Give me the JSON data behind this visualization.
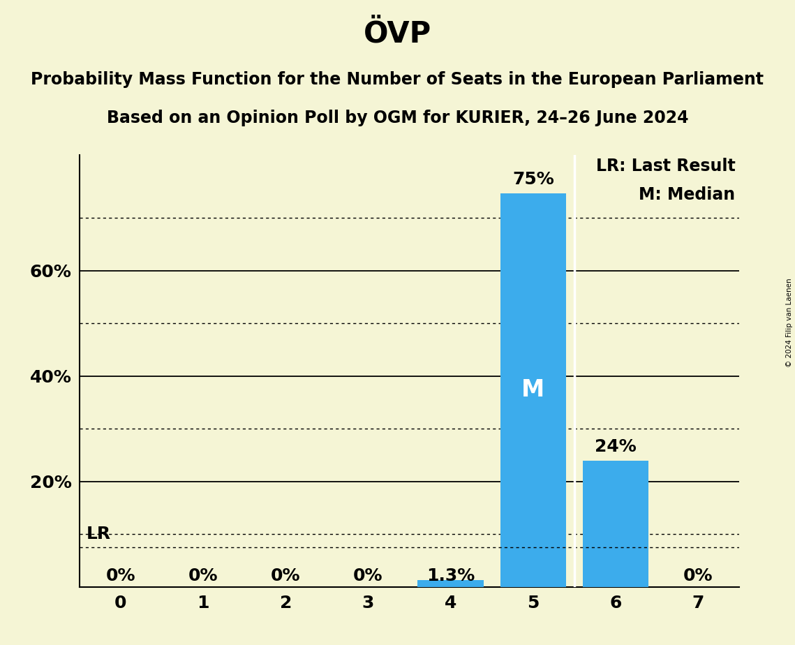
{
  "title": "ÖVP",
  "subtitle1": "Probability Mass Function for the Number of Seats in the European Parliament",
  "subtitle2": "Based on an Opinion Poll by OGM for KURIER, 24–26 June 2024",
  "copyright": "© 2024 Filip van Laenen",
  "categories": [
    0,
    1,
    2,
    3,
    4,
    5,
    6,
    7
  ],
  "values": [
    0.0,
    0.0,
    0.0,
    0.0,
    1.3,
    74.7,
    24.0,
    0.0
  ],
  "bar_color": "#3cacec",
  "background_color": "#f5f5d5",
  "ylim": [
    0,
    82
  ],
  "xlim": [
    -0.5,
    7.5
  ],
  "last_result_seat": 5,
  "median_seat": 5,
  "legend_lr": "LR: Last Result",
  "legend_m": "M: Median",
  "value_labels": [
    "0%",
    "0%",
    "0%",
    "0%",
    "1.3%",
    "75%",
    "24%",
    "0%"
  ],
  "solid_gridlines": [
    20,
    40,
    60
  ],
  "dotted_gridlines": [
    10,
    30,
    50,
    70
  ],
  "lr_line_y": 7.5,
  "lr_label": "LR",
  "m_label": "M",
  "bar_width": 0.8,
  "title_fontsize": 30,
  "subtitle_fontsize": 17,
  "tick_fontsize": 18,
  "value_label_fontsize": 18,
  "legend_fontsize": 17,
  "m_label_fontsize": 24,
  "lr_label_fontsize": 18,
  "ytick_positions": [
    20,
    40,
    60
  ],
  "ytick_labels": [
    "20%",
    "40%",
    "60%"
  ]
}
